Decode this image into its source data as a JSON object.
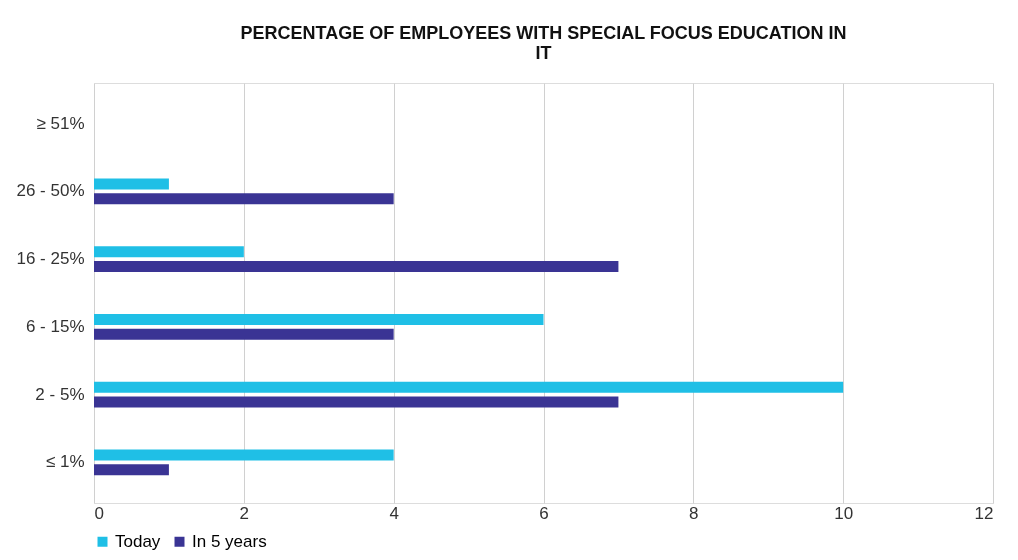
{
  "chart_data": {
    "type": "bar",
    "orientation": "horizontal",
    "title": "PERCENTAGE OF EMPLOYEES WITH SPECIAL FOCUS EDUCATION IN IT",
    "categories": [
      "≥ 51%",
      "26 - 50%",
      "16 - 25%",
      "6 - 15%",
      "2 - 5%",
      "≤ 1%"
    ],
    "series": [
      {
        "name": "Today",
        "color": "#1fbfe6",
        "values": [
          null,
          1,
          2,
          6,
          10,
          4
        ]
      },
      {
        "name": "In 5 years",
        "color": "#3a3494",
        "values": [
          null,
          4,
          7,
          4,
          7,
          1
        ]
      }
    ],
    "xlim": [
      0,
      12
    ],
    "xticks": [
      0,
      2,
      4,
      6,
      8,
      10,
      12
    ],
    "grid": "x",
    "legend": "bottom"
  }
}
